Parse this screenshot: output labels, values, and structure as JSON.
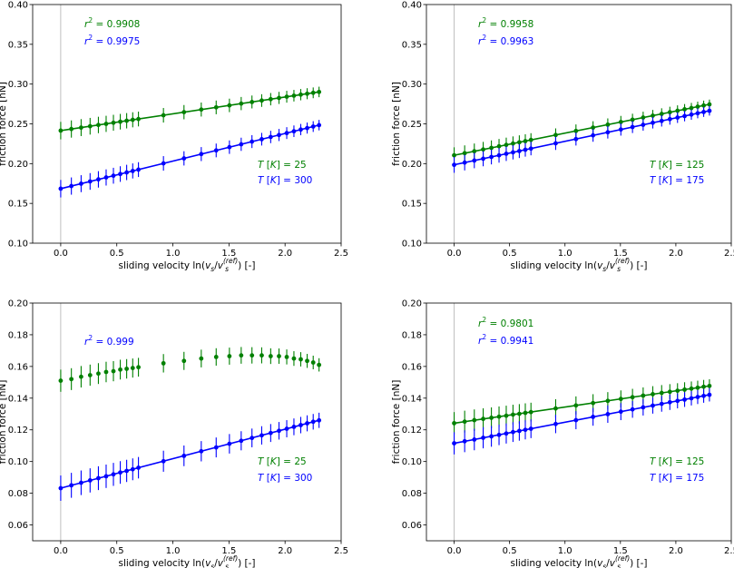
{
  "colors": {
    "green": "#008000",
    "blue": "#0000ff",
    "axis": "#000000",
    "vline": "#b0b0b0"
  },
  "x": [
    0.0,
    0.095,
    0.182,
    0.262,
    0.336,
    0.405,
    0.47,
    0.531,
    0.588,
    0.642,
    0.693,
    0.916,
    1.099,
    1.253,
    1.386,
    1.504,
    1.609,
    1.705,
    1.792,
    1.872,
    1.946,
    2.015,
    2.079,
    2.14,
    2.197,
    2.251,
    2.303
  ],
  "chart_data": [
    {
      "type": "scatter",
      "xlabel": "sliding velocity ln(v_s/v_s^(ref)) [-]",
      "ylabel": "friction force [nN]",
      "xlim": [
        -0.25,
        2.5
      ],
      "ylim": [
        0.1,
        0.4
      ],
      "xticks": [
        "0.0",
        "0.5",
        "1.0",
        "1.5",
        "2.0",
        "2.5"
      ],
      "yticks": [
        "0.10",
        "0.15",
        "0.20",
        "0.25",
        "0.30",
        "0.35",
        "0.40"
      ],
      "series": [
        {
          "name": "T [K] = 25",
          "color": "green",
          "r2": "0.9908",
          "fit": [
            0.2415,
            0.0211
          ],
          "err": 0.011,
          "values": [
            0.2415,
            0.2435,
            0.2453,
            0.247,
            0.2486,
            0.25,
            0.2514,
            0.2527,
            0.2539,
            0.2551,
            0.2561,
            0.2608,
            0.2647,
            0.268,
            0.2707,
            0.2732,
            0.2755,
            0.2775,
            0.2793,
            0.281,
            0.2826,
            0.2841,
            0.2854,
            0.2867,
            0.2879,
            0.289,
            0.2901
          ]
        },
        {
          "name": "T [K] = 300",
          "color": "blue",
          "r2": "0.9975",
          "fit": [
            0.1685,
            0.0347
          ],
          "err": 0.011,
          "values": [
            0.1685,
            0.1718,
            0.1748,
            0.1776,
            0.1802,
            0.1826,
            0.1848,
            0.1869,
            0.1889,
            0.1908,
            0.1925,
            0.2003,
            0.2066,
            0.212,
            0.2166,
            0.2207,
            0.2243,
            0.2277,
            0.2307,
            0.2335,
            0.236,
            0.2384,
            0.2407,
            0.2428,
            0.2447,
            0.2466,
            0.2484
          ]
        }
      ]
    },
    {
      "type": "scatter",
      "xlabel": "sliding velocity ln(v_s/v_s^(ref)) [-]",
      "ylabel": "friction force [nN]",
      "xlim": [
        -0.25,
        2.5
      ],
      "ylim": [
        0.1,
        0.4
      ],
      "xticks": [
        "0.0",
        "0.5",
        "1.0",
        "1.5",
        "2.0",
        "2.5"
      ],
      "yticks": [
        "0.10",
        "0.15",
        "0.20",
        "0.25",
        "0.30",
        "0.35",
        "0.40"
      ],
      "series": [
        {
          "name": "T [K] = 125",
          "color": "green",
          "r2": "0.9958",
          "fit": [
            0.2105,
            0.0278
          ],
          "err": 0.01,
          "values": [
            0.2105,
            0.2131,
            0.2156,
            0.2178,
            0.2198,
            0.2218,
            0.2236,
            0.2253,
            0.2268,
            0.2283,
            0.2298,
            0.236,
            0.2411,
            0.2453,
            0.249,
            0.2523,
            0.2552,
            0.2579,
            0.2603,
            0.2625,
            0.2646,
            0.2665,
            0.2683,
            0.2699,
            0.2716,
            0.2731,
            0.2745
          ]
        },
        {
          "name": "T [K] = 175",
          "color": "blue",
          "r2": "0.9963",
          "fit": [
            0.1985,
            0.0295
          ],
          "err": 0.01,
          "values": [
            0.1985,
            0.2013,
            0.2039,
            0.2062,
            0.2084,
            0.2104,
            0.2124,
            0.2142,
            0.2158,
            0.2174,
            0.2189,
            0.2255,
            0.2309,
            0.2355,
            0.2394,
            0.2429,
            0.246,
            0.2488,
            0.2514,
            0.2537,
            0.2559,
            0.2579,
            0.2598,
            0.2616,
            0.2633,
            0.2649,
            0.2664
          ]
        }
      ]
    },
    {
      "type": "scatter",
      "xlabel": "sliding velocity ln(v_s/v_s^(ref)) [-]",
      "ylabel": "friction force [nN]",
      "xlim": [
        -0.25,
        2.5
      ],
      "ylim": [
        0.05,
        0.2
      ],
      "xticks": [
        "0.0",
        "0.5",
        "1.0",
        "1.5",
        "2.0",
        "2.5"
      ],
      "yticks": [
        "0.06",
        "0.08",
        "0.10",
        "0.12",
        "0.14",
        "0.16",
        "0.18",
        "0.20"
      ],
      "series": [
        {
          "name": "T [K] = 25",
          "color": "green",
          "r2": null,
          "fit": null,
          "err": 0.007,
          "values": [
            0.151,
            0.152,
            0.1535,
            0.1545,
            0.1555,
            0.1565,
            0.157,
            0.158,
            0.1585,
            0.159,
            0.1595,
            0.162,
            0.1635,
            0.165,
            0.166,
            0.1665,
            0.167,
            0.167,
            0.167,
            0.1665,
            0.1665,
            0.166,
            0.165,
            0.1645,
            0.1635,
            0.1625,
            0.161
          ]
        },
        {
          "name": "T [K] = 300",
          "color": "blue",
          "r2": "0.999",
          "fit": [
            0.0832,
            0.0186
          ],
          "err": 0.008,
          "values": [
            0.0832,
            0.085,
            0.0866,
            0.0881,
            0.0895,
            0.0907,
            0.0919,
            0.0931,
            0.0941,
            0.0951,
            0.0961,
            0.1002,
            0.1036,
            0.1065,
            0.1089,
            0.1112,
            0.1131,
            0.1149,
            0.1165,
            0.118,
            0.1194,
            0.1207,
            0.1219,
            0.123,
            0.1241,
            0.1251,
            0.126
          ]
        }
      ]
    },
    {
      "type": "scatter",
      "xlabel": "sliding velocity ln(v_s/v_s^(ref)) [-]",
      "ylabel": "friction force [nN]",
      "xlim": [
        -0.25,
        2.5
      ],
      "ylim": [
        0.05,
        0.2
      ],
      "xticks": [
        "0.0",
        "0.5",
        "1.0",
        "1.5",
        "2.0",
        "2.5"
      ],
      "yticks": [
        "0.06",
        "0.08",
        "0.10",
        "0.12",
        "0.14",
        "0.16",
        "0.18",
        "0.20"
      ],
      "series": [
        {
          "name": "T [K] = 125",
          "color": "green",
          "r2": "0.9801",
          "fit": [
            0.1242,
            0.0102
          ],
          "err": 0.007,
          "values": [
            0.1242,
            0.1252,
            0.1261,
            0.1269,
            0.1276,
            0.1283,
            0.1289,
            0.1296,
            0.1301,
            0.1307,
            0.1312,
            0.1335,
            0.1354,
            0.1369,
            0.1383,
            0.1395,
            0.1406,
            0.1416,
            0.1425,
            0.1433,
            0.144,
            0.1447,
            0.1454,
            0.146,
            0.1466,
            0.1472,
            0.1477
          ]
        },
        {
          "name": "T [K] = 175",
          "color": "blue",
          "r2": "0.9941",
          "fit": [
            0.1115,
            0.0133
          ],
          "err": 0.007,
          "values": [
            0.1115,
            0.1128,
            0.1139,
            0.115,
            0.1159,
            0.1168,
            0.1177,
            0.1186,
            0.1193,
            0.12,
            0.1207,
            0.1237,
            0.1261,
            0.1282,
            0.1299,
            0.1315,
            0.1329,
            0.1342,
            0.1353,
            0.1364,
            0.1374,
            0.1383,
            0.1391,
            0.1399,
            0.1407,
            0.1414,
            0.1421
          ]
        }
      ]
    }
  ]
}
